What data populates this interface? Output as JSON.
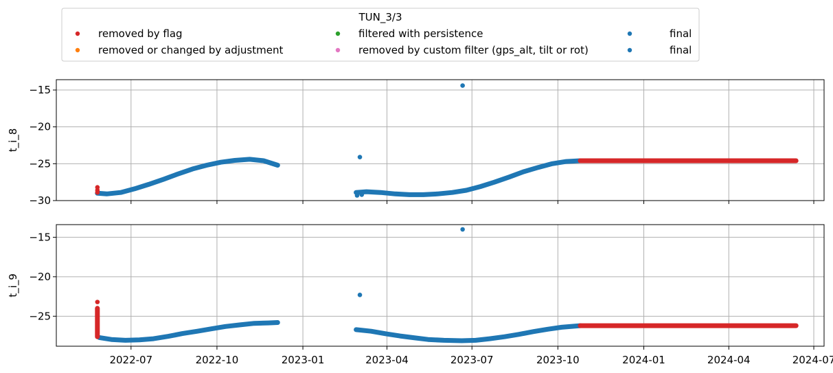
{
  "legend": {
    "title": "TUN_3/3",
    "entries": [
      {
        "label": "removed by flag",
        "color": "#d62728"
      },
      {
        "label": "filtered with persistence",
        "color": "#2ca02c"
      },
      {
        "label": "final",
        "color": "#1f77b4"
      },
      {
        "label": "removed or changed by adjustment",
        "color": "#ff7f0e"
      },
      {
        "label": "removed by custom filter (gps_alt, tilt or rot)",
        "color": "#e377c2"
      },
      {
        "label": "final",
        "color": "#1f77b4"
      }
    ]
  },
  "chart_data": [
    {
      "type": "scatter",
      "title": "",
      "ylabel": "t_i_8",
      "xlabel": "",
      "xlim": [
        "2022-04-12",
        "2024-07-12"
      ],
      "ylim": [
        -30,
        -13.6
      ],
      "yticks": [
        -30,
        -25,
        -20,
        -15
      ],
      "xticks": [
        "2022-07",
        "2022-10",
        "2023-01",
        "2023-04",
        "2023-07",
        "2023-10",
        "2024-01",
        "2024-04",
        "2024-07"
      ],
      "show_xtick_labels": false,
      "grid": true,
      "series": [
        {
          "color": "#1f77b4",
          "segments": [
            [
              [
                "2022-05-26",
                -29.0
              ],
              [
                "2022-06-05",
                -29.1
              ],
              [
                "2022-06-20",
                -28.9
              ],
              [
                "2022-07-05",
                -28.4
              ],
              [
                "2022-07-20",
                -27.8
              ],
              [
                "2022-08-05",
                -27.1
              ],
              [
                "2022-08-20",
                -26.4
              ],
              [
                "2022-09-05",
                -25.7
              ],
              [
                "2022-09-20",
                -25.2
              ],
              [
                "2022-10-05",
                -24.8
              ],
              [
                "2022-10-20",
                -24.55
              ],
              [
                "2022-11-05",
                -24.4
              ],
              [
                "2022-11-20",
                -24.6
              ],
              [
                "2022-12-05",
                -25.2
              ]
            ],
            [
              [
                "2023-02-27",
                -28.9
              ],
              [
                "2023-03-10",
                -28.8
              ],
              [
                "2023-03-25",
                -28.9
              ],
              [
                "2023-04-10",
                -29.1
              ],
              [
                "2023-04-25",
                -29.2
              ],
              [
                "2023-05-10",
                -29.2
              ],
              [
                "2023-05-25",
                -29.1
              ],
              [
                "2023-06-10",
                -28.9
              ],
              [
                "2023-06-25",
                -28.6
              ],
              [
                "2023-07-10",
                -28.1
              ],
              [
                "2023-07-25",
                -27.5
              ],
              [
                "2023-08-10",
                -26.8
              ],
              [
                "2023-08-25",
                -26.1
              ],
              [
                "2023-09-10",
                -25.5
              ],
              [
                "2023-09-25",
                -25.0
              ],
              [
                "2023-10-10",
                -24.7
              ],
              [
                "2023-10-25",
                -24.6
              ]
            ]
          ],
          "points": [
            [
              "2023-03-03",
              -24.1
            ],
            [
              "2023-06-21",
              -14.4
            ],
            [
              "2023-02-28",
              -29.3
            ],
            [
              "2023-03-05",
              -29.2
            ]
          ]
        },
        {
          "color": "#d62728",
          "segments": [
            [
              [
                "2023-10-25",
                -24.6
              ],
              [
                "2024-06-12",
                -24.6
              ]
            ]
          ],
          "points": [
            [
              "2022-05-26",
              -28.2
            ],
            [
              "2022-05-26",
              -28.6
            ],
            [
              "2022-05-26",
              -28.9
            ]
          ]
        }
      ]
    },
    {
      "type": "scatter",
      "title": "",
      "ylabel": "t_i_9",
      "xlabel": "",
      "xlim": [
        "2022-04-12",
        "2024-07-12"
      ],
      "ylim": [
        -28.8,
        -13.4
      ],
      "yticks": [
        -25,
        -20,
        -15
      ],
      "xticks": [
        "2022-07",
        "2022-10",
        "2023-01",
        "2023-04",
        "2023-07",
        "2023-10",
        "2024-01",
        "2024-04",
        "2024-07"
      ],
      "show_xtick_labels": true,
      "grid": true,
      "series": [
        {
          "color": "#1f77b4",
          "segments": [
            [
              [
                "2022-05-28",
                -27.7
              ],
              [
                "2022-06-10",
                -27.95
              ],
              [
                "2022-06-25",
                -28.05
              ],
              [
                "2022-07-10",
                -28.0
              ],
              [
                "2022-07-25",
                -27.85
              ],
              [
                "2022-08-10",
                -27.55
              ],
              [
                "2022-08-25",
                -27.2
              ],
              [
                "2022-09-10",
                -26.9
              ],
              [
                "2022-09-25",
                -26.6
              ],
              [
                "2022-10-10",
                -26.3
              ],
              [
                "2022-10-25",
                -26.1
              ],
              [
                "2022-11-10",
                -25.9
              ],
              [
                "2022-11-25",
                -25.85
              ],
              [
                "2022-12-05",
                -25.8
              ]
            ],
            [
              [
                "2023-02-27",
                -26.7
              ],
              [
                "2023-03-15",
                -26.9
              ],
              [
                "2023-04-01",
                -27.25
              ],
              [
                "2023-04-15",
                -27.5
              ],
              [
                "2023-05-01",
                -27.75
              ],
              [
                "2023-05-15",
                -27.95
              ],
              [
                "2023-06-01",
                -28.05
              ],
              [
                "2023-06-20",
                -28.1
              ],
              [
                "2023-07-05",
                -28.05
              ],
              [
                "2023-07-20",
                -27.85
              ],
              [
                "2023-08-05",
                -27.6
              ],
              [
                "2023-08-20",
                -27.3
              ],
              [
                "2023-09-05",
                -26.95
              ],
              [
                "2023-09-20",
                -26.65
              ],
              [
                "2023-10-05",
                -26.4
              ],
              [
                "2023-10-25",
                -26.2
              ]
            ]
          ],
          "points": [
            [
              "2023-03-03",
              -22.3
            ],
            [
              "2023-06-21",
              -14.0
            ]
          ]
        },
        {
          "color": "#d62728",
          "segments": [
            [
              [
                "2023-10-25",
                -26.2
              ],
              [
                "2024-06-12",
                -26.2
              ]
            ],
            [
              [
                "2022-05-26",
                -27.6
              ],
              [
                "2022-05-26",
                -24.0
              ]
            ]
          ],
          "points": [
            [
              "2022-05-26",
              -23.2
            ]
          ]
        }
      ]
    }
  ]
}
